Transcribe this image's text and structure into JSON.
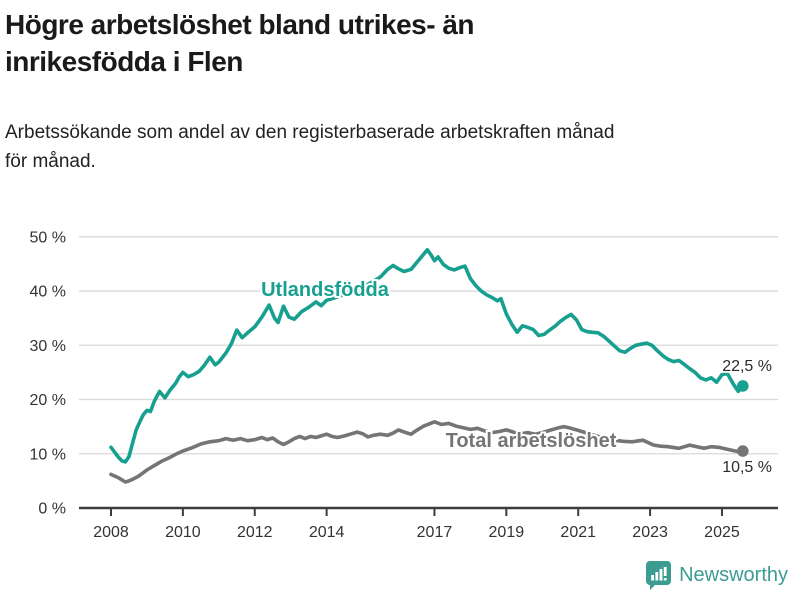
{
  "header": {
    "title_line1": "Högre arbetslöshet bland utrikes- än",
    "title_line2": "inrikesfödda i Flen",
    "subtitle_line1": "Arbetssökande som andel av den registerbaserade arbetskraften månad",
    "subtitle_line2": "för månad."
  },
  "chart_data": {
    "type": "line",
    "title": "Arbetssökande som andel av den registerbaserade arbetskraften månad för månad",
    "xlabel": "",
    "ylabel": "",
    "x_range": [
      2007.4,
      2026.1
    ],
    "ylim": [
      0,
      50
    ],
    "grid": true,
    "legend_position": "inline-labels",
    "y_axis": {
      "labels": [
        {
          "text": "0 %",
          "value": 0
        },
        {
          "text": "10 %",
          "value": 10
        },
        {
          "text": "20 %",
          "value": 20
        },
        {
          "text": "30 %",
          "value": 30
        },
        {
          "text": "40 %",
          "value": 40
        },
        {
          "text": "50 %",
          "value": 50
        }
      ]
    },
    "x_axis": {
      "ticks": [
        {
          "label": "2008",
          "year": 2008
        },
        {
          "label": "2010",
          "year": 2010
        },
        {
          "label": "2012",
          "year": 2012
        },
        {
          "label": "2014",
          "year": 2014
        },
        {
          "label": "2017",
          "year": 2017
        },
        {
          "label": "2019",
          "year": 2019
        },
        {
          "label": "2021",
          "year": 2021
        },
        {
          "label": "2023",
          "year": 2023
        },
        {
          "label": "2025",
          "year": 2025
        }
      ]
    },
    "colors": {
      "grid": "#d9d9d9",
      "axis": "#3d3d3d",
      "tick_text": "#333333",
      "value_label_text": "#2b2b2b"
    },
    "series": [
      {
        "name": "Utlandsfödda",
        "color": "#17a08f",
        "end_label": "22,5 %",
        "last_value": 22.5,
        "points": [
          [
            2008.0,
            11.2
          ],
          [
            2008.1,
            10.3
          ],
          [
            2008.2,
            9.4
          ],
          [
            2008.3,
            8.7
          ],
          [
            2008.4,
            8.5
          ],
          [
            2008.5,
            9.5
          ],
          [
            2008.6,
            12.0
          ],
          [
            2008.7,
            14.4
          ],
          [
            2008.8,
            15.9
          ],
          [
            2008.9,
            17.2
          ],
          [
            2009.0,
            18.0
          ],
          [
            2009.1,
            17.8
          ],
          [
            2009.2,
            19.6
          ],
          [
            2009.35,
            21.5
          ],
          [
            2009.5,
            20.3
          ],
          [
            2009.65,
            21.8
          ],
          [
            2009.8,
            23.0
          ],
          [
            2009.9,
            24.2
          ],
          [
            2010.0,
            25.0
          ],
          [
            2010.15,
            24.2
          ],
          [
            2010.3,
            24.6
          ],
          [
            2010.45,
            25.2
          ],
          [
            2010.6,
            26.3
          ],
          [
            2010.75,
            27.8
          ],
          [
            2010.9,
            26.4
          ],
          [
            2011.0,
            26.9
          ],
          [
            2011.2,
            28.6
          ],
          [
            2011.35,
            30.3
          ],
          [
            2011.5,
            32.8
          ],
          [
            2011.65,
            31.4
          ],
          [
            2011.8,
            32.3
          ],
          [
            2012.0,
            33.4
          ],
          [
            2012.2,
            35.2
          ],
          [
            2012.4,
            37.4
          ],
          [
            2012.55,
            35.0
          ],
          [
            2012.65,
            34.2
          ],
          [
            2012.8,
            37.2
          ],
          [
            2012.95,
            35.2
          ],
          [
            2013.1,
            34.8
          ],
          [
            2013.3,
            36.2
          ],
          [
            2013.5,
            37.0
          ],
          [
            2013.7,
            38.0
          ],
          [
            2013.85,
            37.3
          ],
          [
            2014.0,
            38.3
          ],
          [
            2014.25,
            38.8
          ],
          [
            2014.5,
            39.4
          ],
          [
            2014.75,
            40.0
          ],
          [
            2015.0,
            40.7
          ],
          [
            2015.25,
            41.6
          ],
          [
            2015.5,
            42.6
          ],
          [
            2015.7,
            44.0
          ],
          [
            2015.85,
            44.7
          ],
          [
            2016.0,
            44.1
          ],
          [
            2016.15,
            43.6
          ],
          [
            2016.35,
            44.0
          ],
          [
            2016.5,
            45.2
          ],
          [
            2016.65,
            46.4
          ],
          [
            2016.8,
            47.6
          ],
          [
            2016.9,
            46.7
          ],
          [
            2017.0,
            45.6
          ],
          [
            2017.1,
            46.3
          ],
          [
            2017.25,
            44.9
          ],
          [
            2017.4,
            44.2
          ],
          [
            2017.55,
            43.9
          ],
          [
            2017.7,
            44.3
          ],
          [
            2017.85,
            44.6
          ],
          [
            2018.0,
            42.3
          ],
          [
            2018.15,
            41.0
          ],
          [
            2018.3,
            40.0
          ],
          [
            2018.45,
            39.3
          ],
          [
            2018.6,
            38.8
          ],
          [
            2018.75,
            38.2
          ],
          [
            2018.85,
            38.6
          ],
          [
            2019.0,
            35.8
          ],
          [
            2019.15,
            33.9
          ],
          [
            2019.3,
            32.4
          ],
          [
            2019.45,
            33.6
          ],
          [
            2019.6,
            33.3
          ],
          [
            2019.75,
            32.9
          ],
          [
            2019.9,
            31.8
          ],
          [
            2020.05,
            32.0
          ],
          [
            2020.2,
            32.8
          ],
          [
            2020.35,
            33.5
          ],
          [
            2020.5,
            34.4
          ],
          [
            2020.65,
            35.1
          ],
          [
            2020.8,
            35.7
          ],
          [
            2020.95,
            34.7
          ],
          [
            2021.1,
            32.9
          ],
          [
            2021.25,
            32.5
          ],
          [
            2021.4,
            32.4
          ],
          [
            2021.55,
            32.3
          ],
          [
            2021.7,
            31.7
          ],
          [
            2021.85,
            30.8
          ],
          [
            2022.0,
            29.9
          ],
          [
            2022.15,
            29.0
          ],
          [
            2022.3,
            28.7
          ],
          [
            2022.45,
            29.4
          ],
          [
            2022.6,
            30.0
          ],
          [
            2022.75,
            30.2
          ],
          [
            2022.9,
            30.4
          ],
          [
            2023.05,
            30.0
          ],
          [
            2023.2,
            29.0
          ],
          [
            2023.35,
            28.1
          ],
          [
            2023.5,
            27.4
          ],
          [
            2023.65,
            27.0
          ],
          [
            2023.8,
            27.2
          ],
          [
            2023.95,
            26.5
          ],
          [
            2024.1,
            25.7
          ],
          [
            2024.25,
            25.0
          ],
          [
            2024.4,
            24.0
          ],
          [
            2024.55,
            23.6
          ],
          [
            2024.7,
            24.0
          ],
          [
            2024.85,
            23.2
          ],
          [
            2025.0,
            24.6
          ],
          [
            2025.15,
            24.8
          ],
          [
            2025.3,
            23.0
          ],
          [
            2025.45,
            21.5
          ],
          [
            2025.58,
            22.5
          ]
        ]
      },
      {
        "name": "Total arbetslöshet",
        "color": "#757575",
        "end_label": "10,5 %",
        "last_value": 10.5,
        "points": [
          [
            2008.0,
            6.2
          ],
          [
            2008.1,
            5.9
          ],
          [
            2008.2,
            5.6
          ],
          [
            2008.3,
            5.2
          ],
          [
            2008.4,
            4.8
          ],
          [
            2008.5,
            5.0
          ],
          [
            2008.6,
            5.3
          ],
          [
            2008.75,
            5.8
          ],
          [
            2008.9,
            6.5
          ],
          [
            2009.0,
            7.0
          ],
          [
            2009.2,
            7.8
          ],
          [
            2009.4,
            8.6
          ],
          [
            2009.6,
            9.2
          ],
          [
            2009.8,
            9.9
          ],
          [
            2010.0,
            10.5
          ],
          [
            2010.25,
            11.1
          ],
          [
            2010.5,
            11.8
          ],
          [
            2010.75,
            12.2
          ],
          [
            2011.0,
            12.4
          ],
          [
            2011.2,
            12.8
          ],
          [
            2011.4,
            12.5
          ],
          [
            2011.6,
            12.8
          ],
          [
            2011.8,
            12.4
          ],
          [
            2012.0,
            12.6
          ],
          [
            2012.2,
            13.0
          ],
          [
            2012.35,
            12.6
          ],
          [
            2012.5,
            12.9
          ],
          [
            2012.65,
            12.2
          ],
          [
            2012.8,
            11.7
          ],
          [
            2012.95,
            12.2
          ],
          [
            2013.1,
            12.8
          ],
          [
            2013.25,
            13.2
          ],
          [
            2013.4,
            12.8
          ],
          [
            2013.55,
            13.2
          ],
          [
            2013.7,
            13.0
          ],
          [
            2013.85,
            13.3
          ],
          [
            2014.0,
            13.6
          ],
          [
            2014.15,
            13.2
          ],
          [
            2014.3,
            13.0
          ],
          [
            2014.5,
            13.3
          ],
          [
            2014.7,
            13.7
          ],
          [
            2014.85,
            14.0
          ],
          [
            2015.0,
            13.7
          ],
          [
            2015.15,
            13.1
          ],
          [
            2015.3,
            13.4
          ],
          [
            2015.5,
            13.6
          ],
          [
            2015.7,
            13.4
          ],
          [
            2015.85,
            13.8
          ],
          [
            2016.0,
            14.4
          ],
          [
            2016.2,
            13.9
          ],
          [
            2016.35,
            13.6
          ],
          [
            2016.5,
            14.3
          ],
          [
            2016.7,
            15.1
          ],
          [
            2016.85,
            15.5
          ],
          [
            2017.0,
            15.9
          ],
          [
            2017.2,
            15.4
          ],
          [
            2017.4,
            15.6
          ],
          [
            2017.6,
            15.1
          ],
          [
            2017.8,
            14.8
          ],
          [
            2018.0,
            14.5
          ],
          [
            2018.2,
            14.7
          ],
          [
            2018.4,
            14.2
          ],
          [
            2018.6,
            13.9
          ],
          [
            2018.8,
            14.1
          ],
          [
            2019.0,
            14.4
          ],
          [
            2019.2,
            14.0
          ],
          [
            2019.4,
            13.7
          ],
          [
            2019.6,
            13.9
          ],
          [
            2019.8,
            13.6
          ],
          [
            2020.0,
            13.9
          ],
          [
            2020.2,
            14.3
          ],
          [
            2020.4,
            14.7
          ],
          [
            2020.6,
            15.0
          ],
          [
            2020.8,
            14.7
          ],
          [
            2021.0,
            14.3
          ],
          [
            2021.2,
            13.9
          ],
          [
            2021.4,
            13.5
          ],
          [
            2021.6,
            13.1
          ],
          [
            2021.8,
            12.8
          ],
          [
            2022.0,
            12.5
          ],
          [
            2022.25,
            12.3
          ],
          [
            2022.5,
            12.2
          ],
          [
            2022.8,
            12.5
          ],
          [
            2023.1,
            11.6
          ],
          [
            2023.3,
            11.4
          ],
          [
            2023.5,
            11.3
          ],
          [
            2023.8,
            11.0
          ],
          [
            2024.1,
            11.6
          ],
          [
            2024.3,
            11.3
          ],
          [
            2024.5,
            11.0
          ],
          [
            2024.7,
            11.3
          ],
          [
            2024.9,
            11.2
          ],
          [
            2025.1,
            10.9
          ],
          [
            2025.3,
            10.6
          ],
          [
            2025.45,
            10.4
          ],
          [
            2025.58,
            10.5
          ]
        ]
      }
    ]
  },
  "footer": {
    "brand": "Newsworthy",
    "brand_color": "#3d9c92"
  }
}
